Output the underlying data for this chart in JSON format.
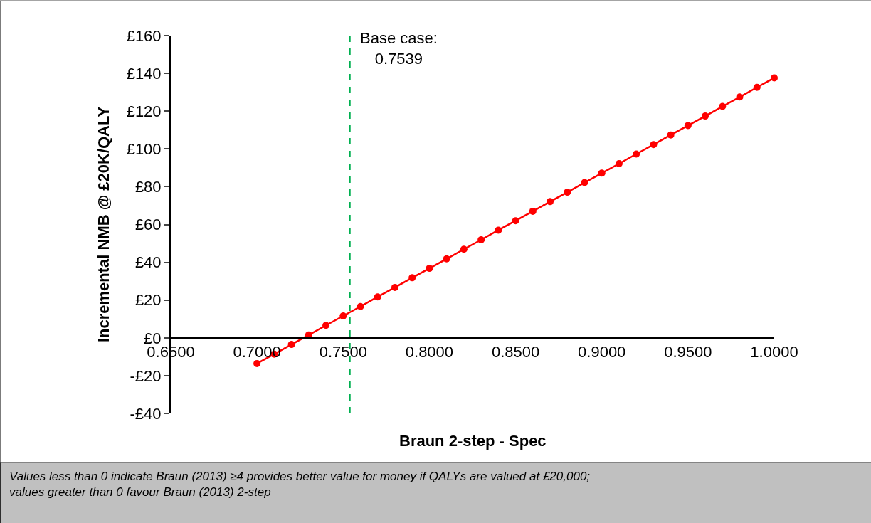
{
  "chart_data": {
    "type": "line",
    "xlabel": "Braun 2-step - Spec",
    "ylabel": "Incremental NMB @ £20K/QALY",
    "x": [
      0.7,
      0.71,
      0.72,
      0.73,
      0.74,
      0.75,
      0.76,
      0.77,
      0.78,
      0.79,
      0.8,
      0.81,
      0.82,
      0.83,
      0.84,
      0.85,
      0.86,
      0.87,
      0.88,
      0.89,
      0.9,
      0.91,
      0.92,
      0.93,
      0.94,
      0.95,
      0.96,
      0.97,
      0.98,
      0.99,
      1.0
    ],
    "series": [
      {
        "color": "#ff0000",
        "values": [
          -13.6,
          -8.6,
          -3.5,
          1.5,
          6.6,
          11.6,
          16.6,
          21.7,
          26.7,
          31.8,
          36.8,
          41.8,
          46.9,
          51.9,
          57.0,
          62.0,
          67.0,
          72.1,
          77.1,
          82.2,
          87.2,
          92.2,
          97.3,
          102.3,
          107.4,
          112.4,
          117.4,
          122.5,
          127.5,
          132.6,
          137.6
        ]
      }
    ],
    "xlim": [
      0.65,
      1.0
    ],
    "xticks": [
      {
        "value": 0.65,
        "label": "0.6500"
      },
      {
        "value": 0.7,
        "label": "0.7000"
      },
      {
        "value": 0.75,
        "label": "0.7500"
      },
      {
        "value": 0.8,
        "label": "0.8000"
      },
      {
        "value": 0.85,
        "label": "0.8500"
      },
      {
        "value": 0.9,
        "label": "0.9000"
      },
      {
        "value": 0.95,
        "label": "0.9500"
      },
      {
        "value": 1.0,
        "label": "1.0000"
      }
    ],
    "ylim": [
      -40,
      160
    ],
    "yticks": [
      {
        "value": -40,
        "label": "-£40"
      },
      {
        "value": -20,
        "label": "-£20"
      },
      {
        "value": 0,
        "label": "£0"
      },
      {
        "value": 20,
        "label": "£20"
      },
      {
        "value": 40,
        "label": "£40"
      },
      {
        "value": 60,
        "label": "£60"
      },
      {
        "value": 80,
        "label": "£80"
      },
      {
        "value": 100,
        "label": "£100"
      },
      {
        "value": 120,
        "label": "£120"
      },
      {
        "value": 140,
        "label": "£140"
      },
      {
        "value": 160,
        "label": "£160"
      }
    ],
    "ref_lines": [
      {
        "axis": "x",
        "value": 0.7539,
        "label": "Base case:\n0.7539",
        "color": "#00b050",
        "line_style": "dashed"
      }
    ],
    "annotations": [
      "Values less than 0 indicate Braun (2013) ≥4 provides better value for money if QALYs are valued at £20,000;\nvalues greater than 0 favour Braun (2013) 2-step"
    ],
    "grid": false,
    "marker": "circle",
    "line_style": "solid"
  }
}
